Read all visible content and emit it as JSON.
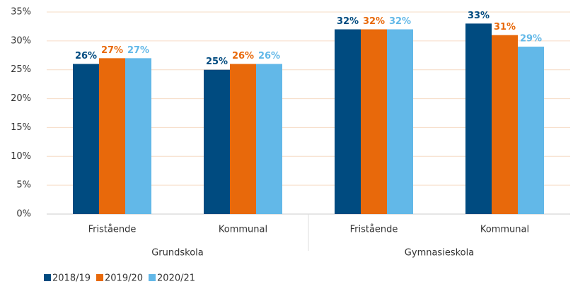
{
  "chart_data": {
    "type": "bar",
    "groups": [
      {
        "name": "Grundskola",
        "categories": [
          "Fristående",
          "Kommunal"
        ]
      },
      {
        "name": "Gymnasieskola",
        "categories": [
          "Fristående",
          "Kommunal"
        ]
      }
    ],
    "series": [
      {
        "name": "2018/19",
        "color": "#004b80",
        "values": [
          26,
          25,
          32,
          33
        ],
        "value_labels": [
          "26%",
          "25%",
          "32%",
          "33%"
        ]
      },
      {
        "name": "2019/20",
        "color": "#e8690b",
        "values": [
          27,
          26,
          32,
          31
        ],
        "value_labels": [
          "27%",
          "26%",
          "32%",
          "31%"
        ]
      },
      {
        "name": "2020/21",
        "color": "#62b8e8",
        "values": [
          27,
          26,
          32,
          29
        ],
        "value_labels": [
          "27%",
          "26%",
          "32%",
          "29%"
        ]
      }
    ],
    "ylim": [
      0,
      35
    ],
    "yticks": [
      {
        "value": 0,
        "label": "0%"
      },
      {
        "value": 5,
        "label": "5%"
      },
      {
        "value": 10,
        "label": "10%"
      },
      {
        "value": 15,
        "label": "15%"
      },
      {
        "value": 20,
        "label": "20%"
      },
      {
        "value": 25,
        "label": "25%"
      },
      {
        "value": 30,
        "label": "30%"
      },
      {
        "value": 35,
        "label": "35%"
      }
    ],
    "grid": true,
    "legend": "bottom-left"
  }
}
